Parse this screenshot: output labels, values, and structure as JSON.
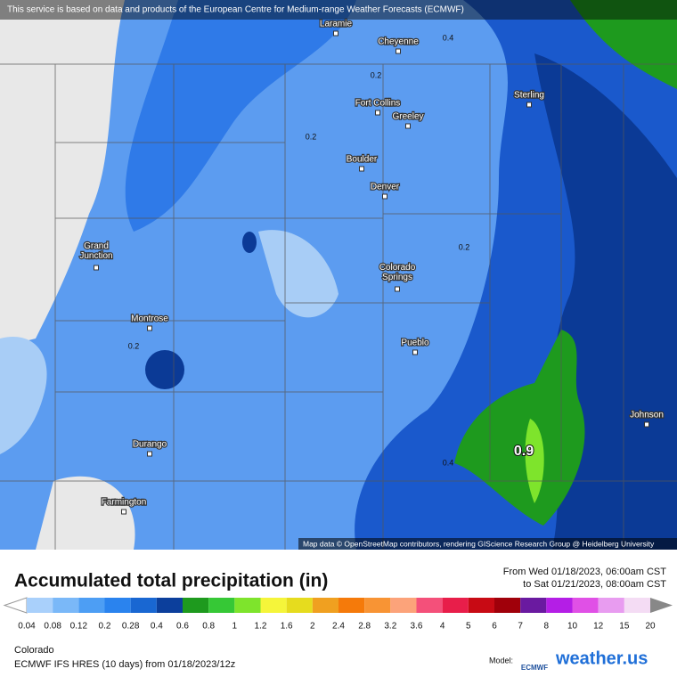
{
  "banner": "This service is based on data and products of the European Centre for Medium-range Weather Forecasts (ECMWF)",
  "cities": [
    "Laramie",
    "Cheyenne",
    "Sterling",
    "Fort Collins",
    "Greeley",
    "Boulder",
    "Denver",
    "Grand\nJunction",
    "Colorado\nSprings",
    "Montrose",
    "Pueblo",
    "Johnson",
    "Durango",
    "Farmington"
  ],
  "contour_labels": [
    "0.4",
    "0.2",
    "0.2",
    "0.2",
    "0.2",
    "0.4",
    "0.9"
  ],
  "attribution": "Map data © OpenStreetMap contributors, rendering GIScience Research Group @ Heidelberg University",
  "legend": {
    "title": "Accumulated total precipitation (in)",
    "period_from": "From Wed 01/18/2023, 06:00am CST",
    "period_to": "to Sat 01/21/2023, 08:00am CST",
    "labels": [
      "0.04",
      "0.08",
      "0.12",
      "0.2",
      "0.28",
      "0.4",
      "0.6",
      "0.8",
      "1",
      "1.2",
      "1.6",
      "2",
      "2.4",
      "2.8",
      "3.2",
      "3.6",
      "4",
      "5",
      "6",
      "7",
      "8",
      "10",
      "12",
      "15",
      "20"
    ]
  },
  "footer": {
    "region": "Colorado",
    "model_run": "ECMWF IFS HRES (10 days) from 01/18/2023/12z",
    "model_label": "Model:",
    "model_name": "ECMWF",
    "brand": "weather.us"
  }
}
